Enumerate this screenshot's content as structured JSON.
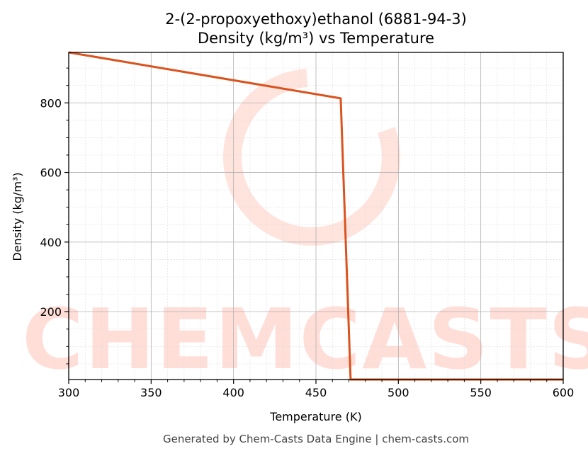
{
  "chart_data": {
    "type": "line",
    "title": "2-(2-propoxyethoxy)ethanol (6881-94-3)",
    "subtitle": "Density (kg/m³) vs Temperature",
    "xlabel": "Temperature (K)",
    "ylabel": "Density (kg/m³)",
    "xlim": [
      300,
      600
    ],
    "ylim": [
      5,
      945
    ],
    "xticks": [
      300,
      350,
      400,
      450,
      500,
      550,
      600
    ],
    "yticks": [
      200,
      400,
      600,
      800
    ],
    "grid": true,
    "series": [
      {
        "color": "#d9531e",
        "x": [
          300,
          465,
          471,
          600
        ],
        "y": [
          945,
          813,
          5,
          5
        ]
      }
    ]
  },
  "watermark": "CHEMCASTS",
  "footer": "Generated by Chem-Casts Data Engine | chem-casts.com"
}
